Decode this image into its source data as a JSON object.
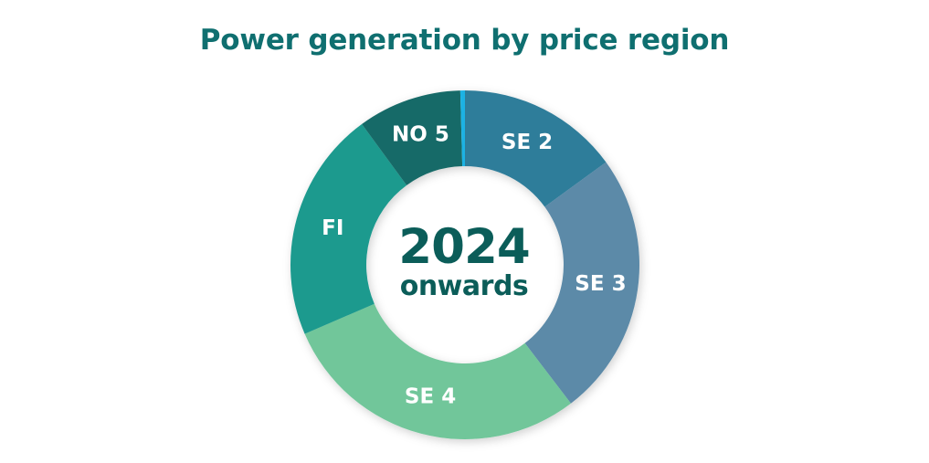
{
  "chart_data": {
    "type": "pie",
    "title": "Power generation by price region",
    "center_label": {
      "line1": "2024",
      "line2": "onwards"
    },
    "slices": [
      {
        "label": "SE 2",
        "value": 14,
        "color": "#2f7d9a"
      },
      {
        "label": "SE 3",
        "value": 23,
        "color": "#5b8aa8"
      },
      {
        "label": "SE 4",
        "value": 27,
        "color": "#71c69a"
      },
      {
        "label": "FI",
        "value": 20,
        "color": "#1c9a8e"
      },
      {
        "label": "NO 5",
        "value": 9,
        "color": "#196a67"
      },
      {
        "label": "",
        "value": 0.4,
        "color": "#1eb2e3"
      }
    ],
    "start_angle_deg": 0,
    "shape": "donut"
  }
}
